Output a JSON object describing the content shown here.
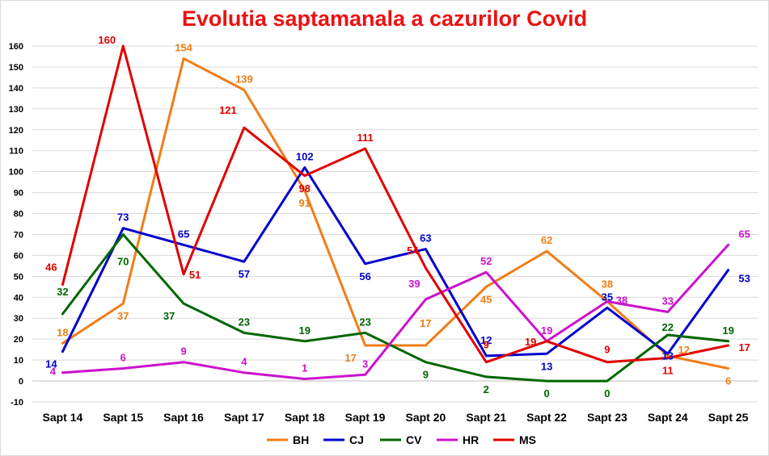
{
  "chart_data": {
    "type": "line",
    "title": "Evolutia saptamanala a cazurilor Covid",
    "xlabel": "",
    "ylabel": "",
    "ylim": [
      -10,
      160
    ],
    "yticks": [
      -10,
      0,
      10,
      20,
      30,
      40,
      50,
      60,
      70,
      80,
      90,
      100,
      110,
      120,
      130,
      140,
      150,
      160
    ],
    "grid": true,
    "legend_position": "bottom",
    "categories": [
      "Sapt 14",
      "Sapt 15",
      "Sapt 16",
      "Sapt 17",
      "Sapt 18",
      "Sapt 19",
      "Sapt 20",
      "Sapt 21",
      "Sapt 22",
      "Sapt 23",
      "Sapt 24",
      "Sapt 25"
    ],
    "series": [
      {
        "name": "BH",
        "color": "#f07d17",
        "values": [
          18,
          37,
          154,
          139,
          91,
          17,
          17,
          45,
          62,
          38,
          12,
          6
        ]
      },
      {
        "name": "CJ",
        "color": "#0000cc",
        "values": [
          14,
          73,
          65,
          57,
          102,
          56,
          63,
          12,
          13,
          35,
          13,
          53
        ]
      },
      {
        "name": "CV",
        "color": "#006600",
        "values": [
          32,
          70,
          37,
          23,
          19,
          23,
          9,
          2,
          0,
          0,
          22,
          19
        ]
      },
      {
        "name": "HR",
        "color": "#cc11cc",
        "values": [
          4,
          6,
          9,
          4,
          1,
          3,
          39,
          52,
          19,
          38,
          33,
          65
        ]
      },
      {
        "name": "MS",
        "color": "#e00000",
        "values": [
          46,
          160,
          51,
          121,
          98,
          111,
          54,
          9,
          19,
          9,
          11,
          17
        ]
      }
    ]
  }
}
